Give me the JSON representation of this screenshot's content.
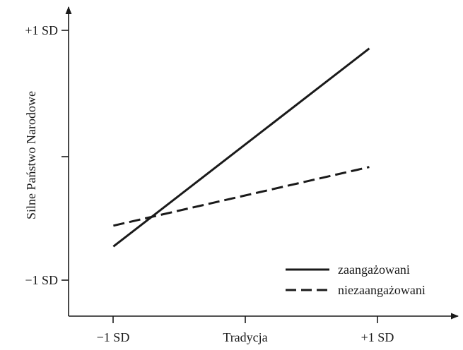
{
  "chart_data": {
    "type": "line",
    "title": "",
    "xlabel": "Tradycja",
    "ylabel": "Silne Państwo Narodowe",
    "x_ticks": [
      "−1 SD",
      "+1 SD"
    ],
    "y_ticks": [
      "+1 SD",
      "−1 SD"
    ],
    "x": [
      -1,
      1
    ],
    "xlim": [
      -1.35,
      1.65
    ],
    "ylim": [
      -1.3,
      1.2
    ],
    "grid": false,
    "legend_position": "bottom-right",
    "series": [
      {
        "name": "zaangażowani",
        "style": "solid",
        "color": "#1a1a1a",
        "values": [
          -0.73,
          0.89
        ]
      },
      {
        "name": "niezaangażowani",
        "style": "dashed",
        "color": "#1a1a1a",
        "values": [
          -0.56,
          -0.08
        ]
      }
    ]
  }
}
